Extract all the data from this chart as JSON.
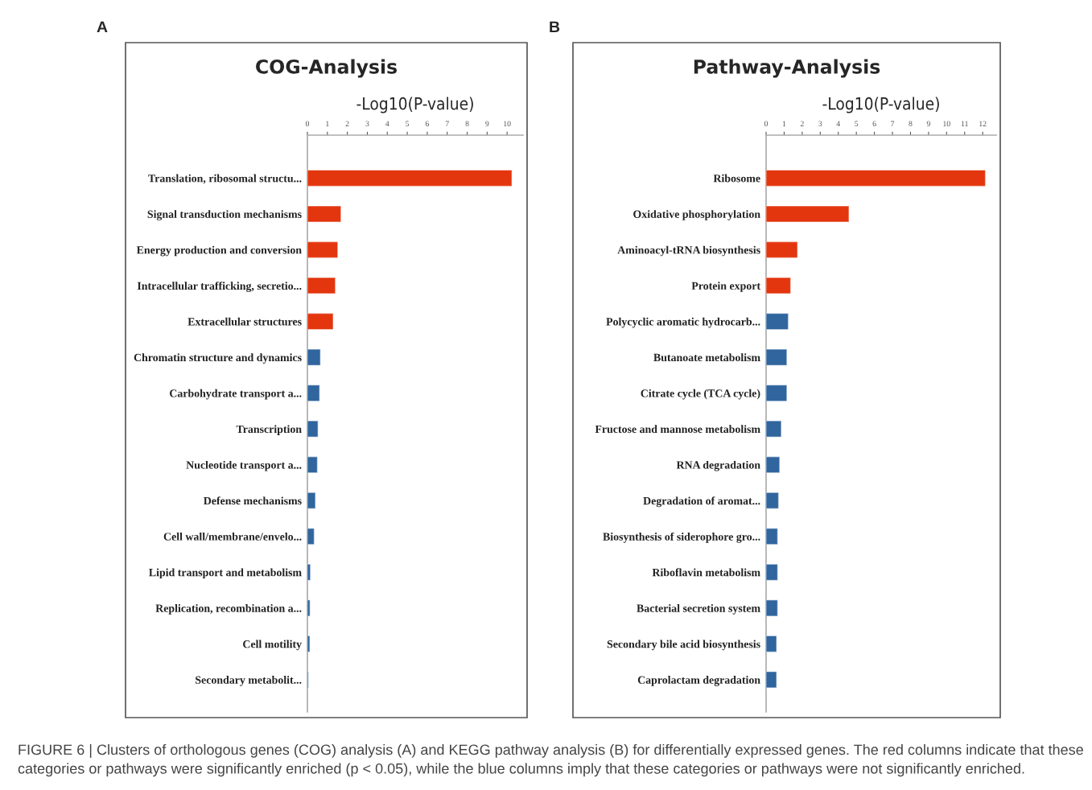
{
  "chart_data": [
    {
      "type": "bar",
      "orientation": "horizontal",
      "title": "COG-Analysis",
      "xlabel": "-Log10(P-value)",
      "categories": [
        "Translation, ribosomal structu...",
        "Signal transduction mechanisms",
        "Energy production and conversion",
        "Intracellular trafficking, secretio...",
        "Extracellular structures",
        "Chromatin structure and dynamics",
        "Carbohydrate transport a...",
        "Transcription",
        "Nucleotide transport a...",
        "Defense mechanisms",
        "Cell wall/membrane/envelo...",
        "Lipid transport and metabolism",
        "Replication, recombination a...",
        "Cell motility",
        "Secondary metabolit..."
      ],
      "values": [
        10.24,
        1.68,
        1.52,
        1.4,
        1.29,
        0.65,
        0.61,
        0.53,
        0.5,
        0.4,
        0.34,
        0.15,
        0.13,
        0.12,
        0.05
      ],
      "colors": [
        "#e3360f",
        "#e3360f",
        "#e3360f",
        "#e3360f",
        "#e3360f",
        "#30659d",
        "#30659d",
        "#30659d",
        "#30659d",
        "#30659d",
        "#30659d",
        "#30659d",
        "#30659d",
        "#30659d",
        "#30659d"
      ],
      "xlim": [
        0,
        10.8
      ],
      "xticks": [
        0,
        1,
        2,
        3,
        4,
        5,
        6,
        7,
        8,
        9,
        10
      ],
      "grid": false,
      "annotations": [
        "A"
      ]
    },
    {
      "type": "bar",
      "orientation": "horizontal",
      "title": "Pathway-Analysis",
      "xlabel": "-Log10(P-value)",
      "categories": [
        "Ribosome",
        "Oxidative phosphorylation",
        "Aminoacyl-tRNA biosynthesis",
        "Protein export",
        "Polycyclic aromatic hydrocarb...",
        "Butanoate metabolism",
        "Citrate cycle (TCA cycle)",
        "Fructose and mannose metabolism",
        "RNA degradation",
        "Degradation of aromat...",
        "Biosynthesis of siderophore gro...",
        "Riboflavin metabolism",
        "Bacterial secretion system",
        "Secondary bile acid biosynthesis",
        "Caprolactam degradation"
      ],
      "values": [
        12.15,
        4.59,
        1.74,
        1.36,
        1.23,
        1.15,
        1.15,
        0.84,
        0.75,
        0.69,
        0.64,
        0.64,
        0.64,
        0.58,
        0.58
      ],
      "colors": [
        "#e3360f",
        "#e3360f",
        "#e3360f",
        "#e3360f",
        "#30659d",
        "#30659d",
        "#30659d",
        "#30659d",
        "#30659d",
        "#30659d",
        "#30659d",
        "#30659d",
        "#30659d",
        "#30659d",
        "#30659d"
      ],
      "xlim": [
        0,
        12.75
      ],
      "xticks": [
        0,
        1,
        2,
        3,
        4,
        5,
        6,
        7,
        8,
        9,
        10,
        11,
        12
      ],
      "grid": false,
      "annotations": [
        "B",
        "FIGURE 6 | Clusters of orthologous genes (COG) analysis (A) and KEGG pathway analysis (B) for differentially expressed genes. The red columns indicate that these categories or pathways were significantly enriched (p < 0.05), while the blue columns imply that these categories or pathways were not significantly enriched."
      ]
    }
  ]
}
